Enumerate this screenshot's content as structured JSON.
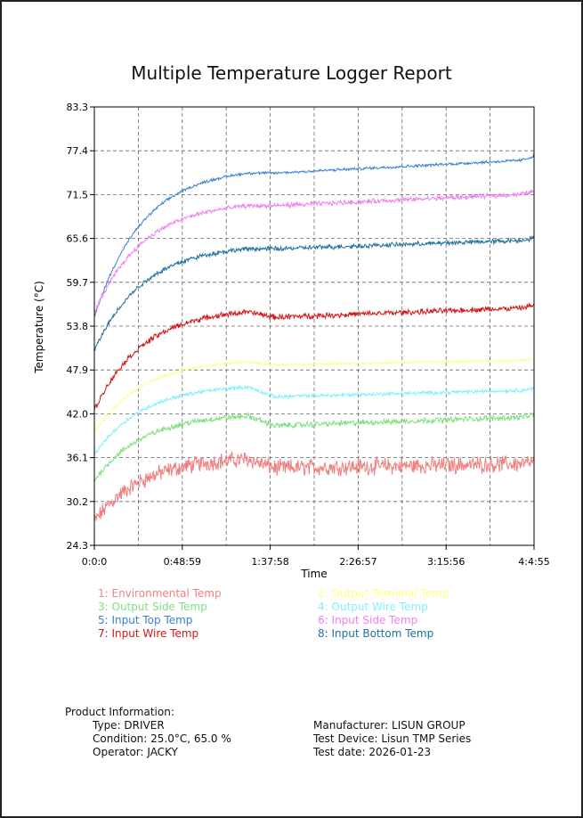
{
  "chart_data": {
    "type": "line",
    "title": "Multiple Temperature Logger Report",
    "xlabel": "Time",
    "ylabel": "Temperature (°C)",
    "x_tick_labels": [
      "0:0:0",
      "0:48:59",
      "1:37:58",
      "2:26:57",
      "3:15:56",
      "4:4:55"
    ],
    "x_range_seconds": [
      0,
      14695
    ],
    "y_ticks": [
      24.3,
      30.2,
      36.1,
      42.0,
      47.9,
      53.8,
      59.7,
      65.6,
      71.5,
      77.4,
      83.3
    ],
    "ylim": [
      24.3,
      83.3
    ],
    "grid": true,
    "series": [
      {
        "name": "1: Environmental Temp",
        "color": "#f08080",
        "start": 27.5,
        "rise": 7.5,
        "peak": 35.9,
        "settle": 34.7,
        "end": 35.3,
        "noise": 0.9
      },
      {
        "name": "2: Output Terminal Temp",
        "color": "#ffff80",
        "start": 39.5,
        "rise": 8.3,
        "peak": 49.0,
        "settle": 48.6,
        "end": 49.2,
        "noise": 0.12
      },
      {
        "name": "3: Output Side Temp",
        "color": "#80e080",
        "start": 33.0,
        "rise": 8.0,
        "peak": 41.7,
        "settle": 40.4,
        "end": 41.6,
        "noise": 0.3
      },
      {
        "name": "4: Output Wire Temp",
        "color": "#80f0ff",
        "start": 36.5,
        "rise": 8.0,
        "peak": 45.6,
        "settle": 44.3,
        "end": 45.2,
        "noise": 0.2
      },
      {
        "name": "5: Input Top Temp",
        "color": "#3a80d0",
        "start": 55.0,
        "rise": 19.0,
        "peak": 74.4,
        "settle": 74.4,
        "end": 76.2,
        "noise": 0.15
      },
      {
        "name": "6: Input Side Temp",
        "color": "#ee82ee",
        "start": 55.5,
        "rise": 14.0,
        "peak": 70.0,
        "settle": 70.0,
        "end": 71.6,
        "noise": 0.25
      },
      {
        "name": "7: Input Wire Temp",
        "color": "#d01818",
        "start": 42.5,
        "rise": 12.7,
        "peak": 55.7,
        "settle": 55.0,
        "end": 56.3,
        "noise": 0.3
      },
      {
        "name": "8: Input Bottom Temp",
        "color": "#2070a0",
        "start": 50.5,
        "rise": 13.5,
        "peak": 64.2,
        "settle": 64.2,
        "end": 65.4,
        "noise": 0.25
      }
    ]
  },
  "product_info": {
    "heading": "Product Information:",
    "type": "Type:  DRIVER",
    "condition": "Condition: 25.0°C, 65.0 %",
    "operator": "Operator: JACKY",
    "manufacturer": "Manufacturer: LISUN GROUP",
    "device": "Test Device: Lisun TMP Series",
    "date": "Test date: 2026-01-23"
  }
}
